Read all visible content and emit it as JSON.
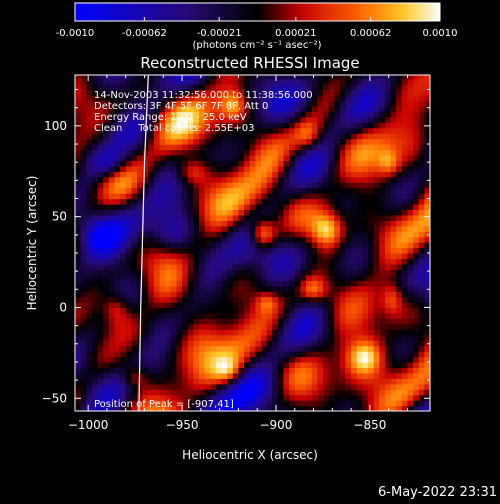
{
  "chart_data": {
    "type": "heatmap",
    "title": "Reconstructed RHESSI Image",
    "xlabel": "Heliocentric X (arcsec)",
    "ylabel": "Heliocentric Y (arcsec)",
    "xlim": [
      -1007,
      -818
    ],
    "ylim": [
      -57,
      128
    ],
    "x_ticks": [
      -1000,
      -950,
      -900,
      -850
    ],
    "y_ticks": [
      -50,
      0,
      50,
      100
    ],
    "colorbar": {
      "range": [
        -0.001,
        0.001
      ],
      "tick_values": [
        -0.001,
        -0.00062,
        -0.00021,
        0.00021,
        0.00062,
        0.001
      ],
      "tick_labels": [
        "-0.0010",
        "-0.00062",
        "-0.00021",
        "0.00021",
        "0.00062",
        "0.0010"
      ],
      "units": "(photons cm⁻² s⁻¹ asec⁻²)",
      "colors": [
        "#0000ff",
        "#000000",
        "#ff0000",
        "#ffa500",
        "#ffffff"
      ]
    },
    "annotations": {
      "time": "14-Nov-2003 11:32:56.000 to 11:38:56.000",
      "detectors": "Detectors: 3F 4F 5F 6F 7F 8F, Att 0",
      "energy": "Energy Range: 12.0 - 25.0 keV",
      "clean": "Clean     Total counts: 2.55E+03",
      "peak": "Position of Peak = [-907,41]"
    },
    "peak": {
      "x": -907,
      "y": 41,
      "value": 0.001
    },
    "limb": [
      [
        -968,
        128
      ],
      [
        -970,
        80
      ],
      [
        -971,
        40
      ],
      [
        -972,
        0
      ],
      [
        -973,
        -57
      ]
    ],
    "sources": [
      {
        "x": -907,
        "y": 41,
        "amp": 0.001,
        "sx": 5,
        "sy": 6
      },
      {
        "x": -873,
        "y": 43,
        "amp": 0.0009,
        "sx": 6,
        "sy": 7
      },
      {
        "x": -853,
        "y": -27,
        "amp": 0.00085,
        "sx": 7,
        "sy": 7
      },
      {
        "x": -880,
        "y": 10,
        "amp": 0.0006,
        "sx": 5,
        "sy": 5
      },
      {
        "x": -838,
        "y": 5,
        "amp": 0.0005,
        "sx": 4,
        "sy": 6
      },
      {
        "x": -883,
        "y": 95,
        "amp": 0.0005,
        "sx": 5,
        "sy": 6
      },
      {
        "x": -923,
        "y": 112,
        "amp": 0.0007,
        "sx": 5,
        "sy": 6
      },
      {
        "x": -945,
        "y": 75,
        "amp": 0.0005,
        "sx": 6,
        "sy": 5
      },
      {
        "x": -985,
        "y": 0,
        "amp": 0.0005,
        "sx": 5,
        "sy": 6
      },
      {
        "x": -975,
        "y": -38,
        "amp": 0.0005,
        "sx": 5,
        "sy": 5
      },
      {
        "x": -925,
        "y": -35,
        "amp": 0.00045,
        "sx": 5,
        "sy": 5
      },
      {
        "x": -905,
        "y": 3,
        "amp": 0.0004,
        "sx": 4,
        "sy": 4
      },
      {
        "x": -840,
        "y": 80,
        "amp": 0.0004,
        "sx": 4,
        "sy": 5
      },
      {
        "x": -990,
        "y": 80,
        "amp": -0.0005,
        "sx": 8,
        "sy": 6
      },
      {
        "x": -995,
        "y": 40,
        "amp": -0.0006,
        "sx": 8,
        "sy": 8
      },
      {
        "x": -985,
        "y": -20,
        "amp": -0.0004,
        "sx": 8,
        "sy": 8
      },
      {
        "x": -945,
        "y": 20,
        "amp": -0.0003,
        "sx": 10,
        "sy": 10
      },
      {
        "x": -955,
        "y": 40,
        "amp": -0.00035,
        "sx": 8,
        "sy": 7
      },
      {
        "x": -900,
        "y": -45,
        "amp": -0.0003,
        "sx": 10,
        "sy": 8
      }
    ],
    "texture_amplitude": 0.00045
  },
  "footer": {
    "date": "6-May-2022 23:31"
  }
}
